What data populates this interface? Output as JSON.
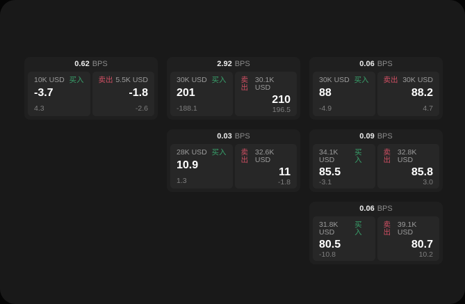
{
  "labels": {
    "bps": "BPS",
    "buy": "买入",
    "sell": "卖出"
  },
  "colors": {
    "buy": "#38a06b",
    "sell": "#cf4f63",
    "page_bg": "#191919",
    "card_bg": "#1f1f1f",
    "panel_bg": "#272727"
  },
  "cards": [
    {
      "row": 0,
      "col": 0,
      "bps": "0.62",
      "buy": {
        "amount": "10K USD",
        "price": "-3.7",
        "delta": "4.3"
      },
      "sell": {
        "amount": "5.5K USD",
        "price": "-1.8",
        "delta": "-2.6"
      }
    },
    {
      "row": 0,
      "col": 1,
      "bps": "2.92",
      "buy": {
        "amount": "30K USD",
        "price": "201",
        "delta": "-188.1"
      },
      "sell": {
        "amount": "30.1K USD",
        "price": "210",
        "delta": "196.5"
      }
    },
    {
      "row": 0,
      "col": 2,
      "bps": "0.06",
      "buy": {
        "amount": "30K USD",
        "price": "88",
        "delta": "-4.9"
      },
      "sell": {
        "amount": "30K USD",
        "price": "88.2",
        "delta": "4.7"
      }
    },
    {
      "row": 1,
      "col": 1,
      "bps": "0.03",
      "buy": {
        "amount": "28K USD",
        "price": "10.9",
        "delta": "1.3"
      },
      "sell": {
        "amount": "32.6K USD",
        "price": "11",
        "delta": "-1.8"
      }
    },
    {
      "row": 1,
      "col": 2,
      "bps": "0.09",
      "buy": {
        "amount": "34.1K USD",
        "price": "85.5",
        "delta": "-3.1"
      },
      "sell": {
        "amount": "32.8K USD",
        "price": "85.8",
        "delta": "3.0"
      }
    },
    {
      "row": 2,
      "col": 2,
      "bps": "0.06",
      "buy": {
        "amount": "31.8K USD",
        "price": "80.5",
        "delta": "-10.8"
      },
      "sell": {
        "amount": "39.1K USD",
        "price": "80.7",
        "delta": "10.2"
      }
    }
  ]
}
